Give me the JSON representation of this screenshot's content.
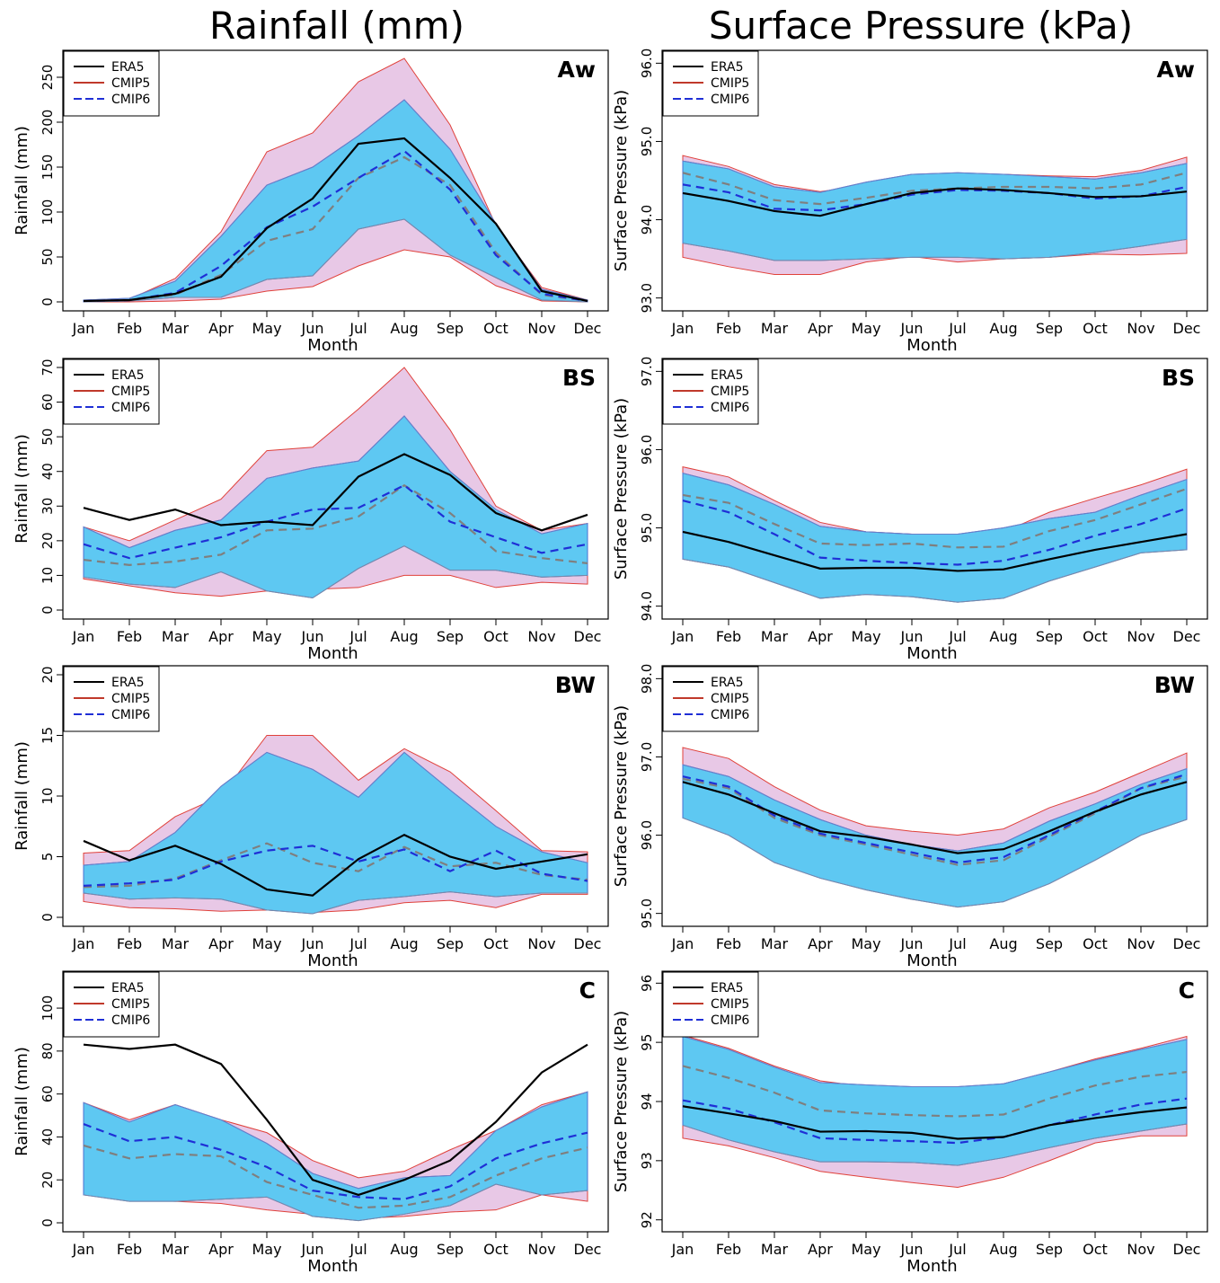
{
  "titles": {
    "left": "Rainfall (mm)",
    "right": "Surface Pressure (kPa)"
  },
  "colors": {
    "era5": "#000000",
    "cmip5_line": "#7f7f7f",
    "cmip5_edge": "#e0413a",
    "cmip5_fill": "#e8c8e6",
    "cmip6": "#1f2fd6",
    "cmip6_fill": "#5ec8f2",
    "cmip6_edge": "#4a6fd0"
  },
  "legend": [
    "ERA5",
    "CMIP5",
    "CMIP6"
  ],
  "chart_data": [
    {
      "type": "line",
      "panel": "Aw",
      "variable": "Rainfall",
      "xlabel": "Month",
      "ylabel": "Rainfall (mm)",
      "ylim": [
        0,
        270
      ],
      "yticks": [
        "0",
        "50",
        "100",
        "150",
        "200",
        "250"
      ],
      "categories": [
        "Jan",
        "Feb",
        "Mar",
        "Apr",
        "May",
        "Jun",
        "Jul",
        "Aug",
        "Sep",
        "Oct",
        "Nov",
        "Dec"
      ],
      "era5": [
        1,
        2,
        9,
        28,
        82,
        115,
        176,
        182,
        138,
        87,
        12,
        1
      ],
      "cmip5_mean": [
        1,
        2,
        8,
        30,
        68,
        81,
        138,
        161,
        130,
        55,
        8,
        1
      ],
      "cmip5_min": [
        0,
        0,
        1,
        3,
        12,
        17,
        40,
        58,
        50,
        18,
        1,
        0
      ],
      "cmip5_max": [
        1,
        3,
        26,
        78,
        167,
        188,
        245,
        271,
        197,
        85,
        16,
        2
      ],
      "cmip6_mean": [
        1,
        2,
        10,
        40,
        83,
        106,
        138,
        168,
        125,
        52,
        9,
        1
      ],
      "cmip6_min": [
        0,
        1,
        5,
        5,
        25,
        29,
        81,
        92,
        52,
        27,
        2,
        0
      ],
      "cmip6_max": [
        2,
        4,
        23,
        73,
        130,
        150,
        185,
        225,
        170,
        87,
        14,
        2
      ]
    },
    {
      "type": "line",
      "panel": "Aw",
      "variable": "Surface Pressure",
      "xlabel": "Month",
      "ylabel": "Surface Pressure (kPa)",
      "ylim": [
        92.95,
        96.05
      ],
      "yticks": [
        "93.0",
        "94.0",
        "95.0",
        "96.0"
      ],
      "categories": [
        "Jan",
        "Feb",
        "Mar",
        "Apr",
        "May",
        "Jun",
        "Jul",
        "Aug",
        "Sep",
        "Oct",
        "Nov",
        "Dec"
      ],
      "era5": [
        94.34,
        94.24,
        94.11,
        94.05,
        94.2,
        94.34,
        94.4,
        94.38,
        94.34,
        94.29,
        94.3,
        94.36
      ],
      "cmip5_mean": [
        94.6,
        94.45,
        94.25,
        94.2,
        94.28,
        94.37,
        94.4,
        94.42,
        94.42,
        94.4,
        94.45,
        94.6
      ],
      "cmip5_min": [
        93.52,
        93.4,
        93.3,
        93.3,
        93.46,
        93.53,
        93.46,
        93.5,
        93.52,
        93.56,
        93.55,
        93.57
      ],
      "cmip5_max": [
        94.82,
        94.68,
        94.45,
        94.36,
        94.44,
        94.55,
        94.58,
        94.58,
        94.56,
        94.55,
        94.63,
        94.8
      ],
      "cmip6_mean": [
        94.45,
        94.35,
        94.14,
        94.12,
        94.2,
        94.32,
        94.38,
        94.37,
        94.34,
        94.27,
        94.3,
        94.42
      ],
      "cmip6_min": [
        93.7,
        93.6,
        93.48,
        93.48,
        93.5,
        93.52,
        93.52,
        93.5,
        93.52,
        93.58,
        93.66,
        93.75
      ],
      "cmip6_max": [
        94.75,
        94.65,
        94.42,
        94.35,
        94.48,
        94.58,
        94.6,
        94.58,
        94.55,
        94.52,
        94.6,
        94.72
      ]
    },
    {
      "type": "line",
      "panel": "BS",
      "variable": "Rainfall",
      "xlabel": "Month",
      "ylabel": "Rainfall (mm)",
      "ylim": [
        0,
        70
      ],
      "yticks": [
        "0",
        "10",
        "20",
        "30",
        "40",
        "50",
        "60",
        "70"
      ],
      "categories": [
        "Jan",
        "Feb",
        "Mar",
        "Apr",
        "May",
        "Jun",
        "Jul",
        "Aug",
        "Sep",
        "Oct",
        "Nov",
        "Dec"
      ],
      "era5": [
        29.5,
        26,
        29,
        24.5,
        25.5,
        24.5,
        38.5,
        45,
        39,
        28,
        23,
        27.5
      ],
      "cmip5_mean": [
        14.5,
        13,
        14,
        16,
        23,
        23.5,
        27,
        36,
        28,
        17,
        15,
        13.5
      ],
      "cmip5_min": [
        9,
        7,
        5,
        4,
        5.5,
        6,
        6.5,
        10,
        10,
        6.5,
        8,
        7.5
      ],
      "cmip5_max": [
        24,
        20,
        26,
        32,
        46,
        47,
        58,
        70,
        52,
        30,
        23,
        25
      ],
      "cmip6_mean": [
        19,
        15,
        18,
        21,
        25.5,
        29,
        29.5,
        36,
        25.5,
        21,
        16.5,
        19
      ],
      "cmip6_min": [
        9.5,
        7.5,
        6.5,
        11,
        5.5,
        3.5,
        12,
        18.5,
        11.5,
        11.5,
        9.5,
        10
      ],
      "cmip6_max": [
        24,
        18,
        23,
        26,
        38,
        41,
        43,
        56,
        40,
        29,
        22,
        25
      ]
    },
    {
      "type": "line",
      "panel": "BS",
      "variable": "Surface Pressure",
      "xlabel": "Month",
      "ylabel": "Surface Pressure (kPa)",
      "ylim": [
        93.95,
        97.05
      ],
      "yticks": [
        "94.0",
        "95.0",
        "96.0",
        "97.0"
      ],
      "categories": [
        "Jan",
        "Feb",
        "Mar",
        "Apr",
        "May",
        "Jun",
        "Jul",
        "Aug",
        "Sep",
        "Oct",
        "Nov",
        "Dec"
      ],
      "era5": [
        94.95,
        94.82,
        94.65,
        94.48,
        94.49,
        94.49,
        94.45,
        94.47,
        94.6,
        94.72,
        94.82,
        94.92
      ],
      "cmip5_mean": [
        95.42,
        95.32,
        95.05,
        94.8,
        94.78,
        94.8,
        94.75,
        94.76,
        94.96,
        95.1,
        95.3,
        95.5
      ],
      "cmip5_min": [
        94.6,
        94.5,
        94.32,
        94.2,
        94.2,
        94.2,
        94.2,
        94.28,
        94.5,
        94.65,
        94.8,
        94.75
      ],
      "cmip5_max": [
        95.78,
        95.65,
        95.35,
        95.07,
        94.95,
        94.92,
        94.9,
        94.95,
        95.2,
        95.38,
        95.55,
        95.75
      ],
      "cmip6_mean": [
        95.35,
        95.2,
        94.92,
        94.62,
        94.58,
        94.55,
        94.53,
        94.58,
        94.72,
        94.9,
        95.05,
        95.25
      ],
      "cmip6_min": [
        94.6,
        94.5,
        94.3,
        94.1,
        94.15,
        94.12,
        94.05,
        94.1,
        94.32,
        94.5,
        94.68,
        94.72
      ],
      "cmip6_max": [
        95.7,
        95.55,
        95.3,
        95.02,
        94.95,
        94.92,
        94.92,
        95.0,
        95.12,
        95.2,
        95.42,
        95.62
      ]
    },
    {
      "type": "line",
      "panel": "BW",
      "variable": "Rainfall",
      "xlabel": "Month",
      "ylabel": "Rainfall (mm)",
      "ylim": [
        0,
        20
      ],
      "yticks": [
        "0",
        "5",
        "10",
        "15",
        "20"
      ],
      "categories": [
        "Jan",
        "Feb",
        "Mar",
        "Apr",
        "May",
        "Jun",
        "Jul",
        "Aug",
        "Sep",
        "Oct",
        "Nov",
        "Dec"
      ],
      "era5": [
        6.3,
        4.7,
        5.9,
        4.4,
        2.3,
        1.8,
        4.8,
        6.8,
        5.0,
        4.0,
        4.6,
        5.2
      ],
      "cmip5_mean": [
        2.5,
        2.6,
        3.2,
        4.7,
        6.1,
        4.5,
        3.8,
        5.8,
        4.2,
        4.5,
        3.5,
        3.1
      ],
      "cmip5_min": [
        1.3,
        0.8,
        0.7,
        0.5,
        0.6,
        0.4,
        0.6,
        1.2,
        1.4,
        0.8,
        1.9,
        1.9
      ],
      "cmip5_max": [
        5.3,
        5.5,
        8.3,
        10,
        15,
        15,
        11.3,
        13.9,
        12,
        8.8,
        5.5,
        5.4
      ],
      "cmip6_mean": [
        2.6,
        2.8,
        3.1,
        4.6,
        5.5,
        5.9,
        4.6,
        5.6,
        3.8,
        5.5,
        3.6,
        3.0
      ],
      "cmip6_min": [
        2.0,
        1.5,
        1.6,
        1.5,
        0.6,
        0.3,
        1.4,
        1.7,
        2.1,
        1.7,
        2.0,
        2.0
      ],
      "cmip6_max": [
        4.3,
        4.6,
        7.0,
        10.8,
        13.6,
        12.2,
        9.9,
        13.6,
        10.5,
        7.5,
        5.4,
        4.5
      ]
    },
    {
      "type": "line",
      "panel": "BW",
      "variable": "Surface Pressure",
      "xlabel": "Month",
      "ylabel": "Surface Pressure (kPa)",
      "ylim": [
        94.95,
        98.05
      ],
      "yticks": [
        "95.0",
        "96.0",
        "97.0",
        "98.0"
      ],
      "categories": [
        "Jan",
        "Feb",
        "Mar",
        "Apr",
        "May",
        "Jun",
        "Jul",
        "Aug",
        "Sep",
        "Oct",
        "Nov",
        "Dec"
      ],
      "era5": [
        96.68,
        96.52,
        96.28,
        96.05,
        95.98,
        95.88,
        95.77,
        95.82,
        96.05,
        96.3,
        96.52,
        96.68
      ],
      "cmip5_mean": [
        96.72,
        96.6,
        96.22,
        96.0,
        95.88,
        95.75,
        95.62,
        95.68,
        95.98,
        96.28,
        96.6,
        96.75
      ],
      "cmip5_min": [
        96.55,
        96.35,
        96.0,
        95.8,
        95.6,
        95.38,
        95.2,
        95.32,
        95.78,
        96.05,
        96.32,
        96.5
      ],
      "cmip5_max": [
        97.12,
        96.98,
        96.62,
        96.32,
        96.12,
        96.05,
        96.0,
        96.08,
        96.35,
        96.55,
        96.8,
        97.05
      ],
      "cmip6_mean": [
        96.75,
        96.62,
        96.25,
        96.02,
        95.9,
        95.78,
        95.65,
        95.72,
        96.0,
        96.3,
        96.6,
        96.78
      ],
      "cmip6_min": [
        96.22,
        96.0,
        95.65,
        95.45,
        95.3,
        95.18,
        95.08,
        95.15,
        95.38,
        95.68,
        96.0,
        96.2
      ],
      "cmip6_max": [
        96.9,
        96.75,
        96.45,
        96.2,
        96.0,
        95.88,
        95.8,
        95.9,
        96.18,
        96.4,
        96.65,
        96.85
      ]
    },
    {
      "type": "line",
      "panel": "C",
      "variable": "Rainfall",
      "xlabel": "Month",
      "ylabel": "Rainfall (mm)",
      "ylim": [
        0,
        113
      ],
      "yticks": [
        "0",
        "20",
        "40",
        "60",
        "80",
        "100"
      ],
      "categories": [
        "Jan",
        "Feb",
        "Mar",
        "Apr",
        "May",
        "Jun",
        "Jul",
        "Aug",
        "Sep",
        "Oct",
        "Nov",
        "Dec"
      ],
      "era5": [
        83,
        81,
        83,
        74,
        48,
        20,
        13,
        20,
        29,
        47,
        70,
        83
      ],
      "cmip5_mean": [
        36,
        30,
        32,
        31,
        19,
        13,
        7,
        8,
        12,
        22,
        30,
        35
      ],
      "cmip5_min": [
        13,
        11,
        10,
        9,
        6,
        4,
        2,
        3,
        5,
        6,
        13,
        10
      ],
      "cmip5_max": [
        56,
        48,
        55,
        48,
        42,
        29,
        21,
        24,
        34,
        43,
        55,
        61
      ],
      "cmip6_mean": [
        46,
        38,
        40,
        34,
        26,
        15,
        12,
        11,
        17,
        30,
        37,
        42
      ],
      "cmip6_min": [
        13,
        10,
        10,
        11,
        12,
        3,
        1,
        4,
        8,
        18,
        13,
        15
      ],
      "cmip6_max": [
        56,
        47,
        55,
        48,
        37,
        23,
        16,
        21,
        22,
        43,
        54,
        61
      ]
    },
    {
      "type": "line",
      "panel": "C",
      "variable": "Surface Pressure",
      "xlabel": "Month",
      "ylabel": "Surface Pressure (kPa)",
      "ylim": [
        91.95,
        96.05
      ],
      "yticks": [
        "92",
        "93",
        "94",
        "95",
        "96"
      ],
      "categories": [
        "Jan",
        "Feb",
        "Mar",
        "Apr",
        "May",
        "Jun",
        "Jul",
        "Aug",
        "Sep",
        "Oct",
        "Nov",
        "Dec"
      ],
      "era5": [
        93.92,
        93.8,
        93.67,
        93.49,
        93.5,
        93.47,
        93.37,
        93.4,
        93.6,
        93.72,
        93.82,
        93.9
      ],
      "cmip5_mean": [
        94.6,
        94.4,
        94.15,
        93.85,
        93.8,
        93.77,
        93.75,
        93.78,
        94.05,
        94.27,
        94.42,
        94.5
      ],
      "cmip5_min": [
        93.38,
        93.25,
        93.05,
        92.82,
        92.72,
        92.63,
        92.55,
        92.72,
        93.0,
        93.3,
        93.42,
        93.42
      ],
      "cmip5_max": [
        95.12,
        94.9,
        94.6,
        94.35,
        94.25,
        94.22,
        94.2,
        94.3,
        94.5,
        94.72,
        94.9,
        95.1
      ],
      "cmip6_mean": [
        94.02,
        93.88,
        93.65,
        93.38,
        93.35,
        93.33,
        93.3,
        93.4,
        93.6,
        93.78,
        93.95,
        94.05
      ],
      "cmip6_min": [
        93.6,
        93.35,
        93.15,
        92.98,
        92.98,
        92.97,
        92.92,
        93.05,
        93.22,
        93.38,
        93.5,
        93.62
      ],
      "cmip6_max": [
        95.1,
        94.88,
        94.58,
        94.32,
        94.28,
        94.25,
        94.25,
        94.3,
        94.5,
        94.7,
        94.88,
        95.05
      ]
    }
  ]
}
